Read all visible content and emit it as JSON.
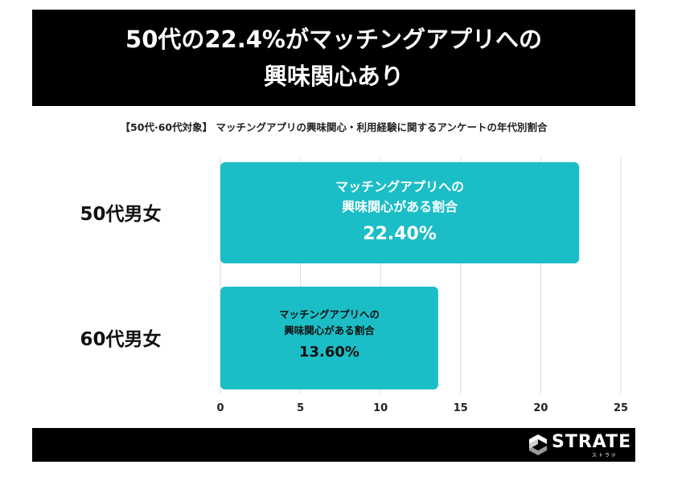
{
  "header": {
    "line1": "50代の22.4%がマッチングアプリへの",
    "line2": "興味関心あり"
  },
  "subtitle": "【50代·60代対象】 マッチングアプリの興味関心・利用経験に関するアンケートの年代別割合",
  "chart_data": {
    "type": "bar",
    "orientation": "horizontal",
    "categories": [
      "50代男女",
      "60代男女"
    ],
    "values": [
      22.4,
      13.6
    ],
    "xlim": [
      0,
      25
    ],
    "xticks": [
      "0",
      "5",
      "10",
      "15",
      "20",
      "25"
    ],
    "grid": true,
    "bar_label_title": "マッチングアプリへの",
    "bar_label_title2": "興味関心がある割合",
    "data_labels": [
      "22.40%",
      "13.60%"
    ],
    "bar_color": "#1bbec6"
  },
  "footer": {
    "logo_text": "STRATE",
    "logo_sub": "ストラテ"
  }
}
